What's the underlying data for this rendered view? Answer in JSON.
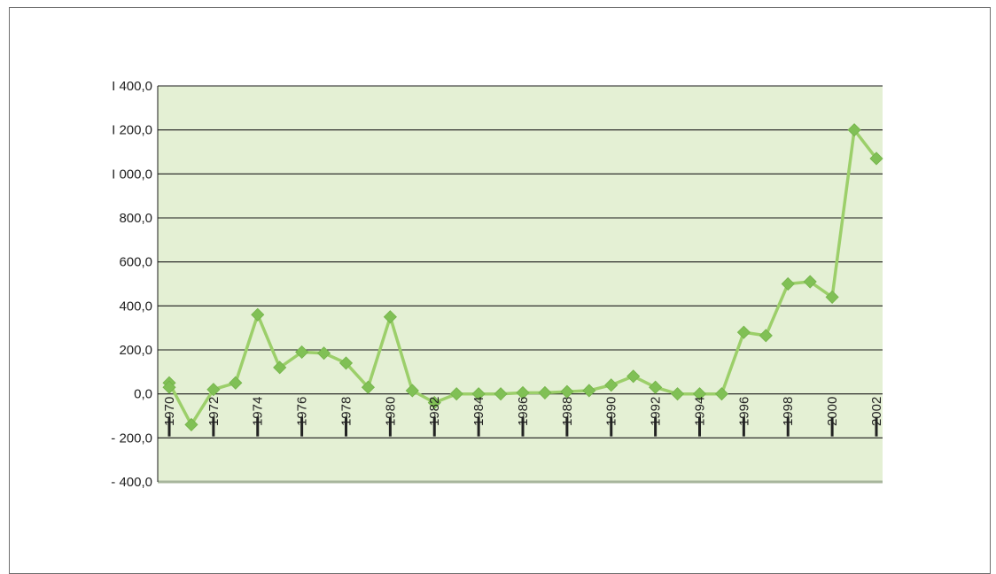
{
  "chart_data": {
    "type": "line",
    "title": "",
    "xlabel": "",
    "ylabel": "",
    "x": [
      1970,
      1971,
      1972,
      1973,
      1974,
      1975,
      1976,
      1977,
      1978,
      1979,
      1980,
      1981,
      1982,
      1983,
      1984,
      1985,
      1986,
      1987,
      1988,
      1989,
      1990,
      1991,
      1992,
      1993,
      1994,
      1995,
      1996,
      1997,
      1998,
      1999,
      2000,
      2001,
      2002
    ],
    "series": [
      {
        "values": [
          50,
          -140,
          20,
          50,
          360,
          120,
          190,
          185,
          140,
          30,
          350,
          15,
          -40,
          0,
          0,
          0,
          5,
          5,
          10,
          15,
          40,
          80,
          30,
          0,
          0,
          0,
          280,
          265,
          500,
          510,
          440,
          1200,
          1070
        ]
      }
    ],
    "extra_points": [
      {
        "x": 1970,
        "y": 30
      }
    ],
    "ylim": [
      -400,
      1400
    ],
    "yticks": [
      -400,
      -200,
      0,
      200,
      400,
      600,
      800,
      1000,
      1200,
      1400
    ],
    "ytick_labels": [
      "- 400,0",
      "- 200,0",
      "0,0",
      "200,0",
      "400,0",
      "600,0",
      "800,0",
      "I 000,0",
      "I 200,0",
      "I 400,0"
    ],
    "xtick_labels": [
      "1970",
      "1972",
      "1974",
      "1976",
      "1978",
      "1980",
      "1982",
      "1984",
      "1986",
      "1988",
      "1990",
      "1992",
      "1994",
      "1996",
      "1998",
      "2000",
      "2002"
    ],
    "grid": true,
    "legend": "none",
    "colors": {
      "plot_background": "#e4f0d4",
      "line": "#9ccf6a",
      "marker": "#80c055",
      "gridline": "#1a1a1a",
      "axis_floor": "#a7b59c"
    }
  }
}
